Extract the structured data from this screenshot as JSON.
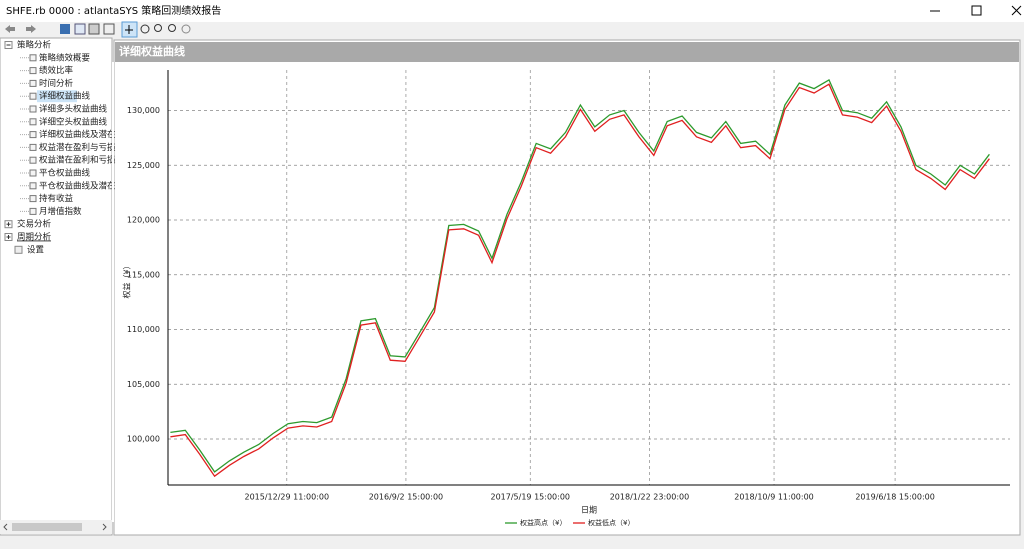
{
  "window": {
    "title": "SHFE.rb 0000 : atlantaSYS 策略回测绩效报告"
  },
  "tree": [
    {
      "label": "策略分析",
      "children": [
        "策略绩效概要",
        "绩效比率",
        "时间分析",
        "详细权益曲线",
        "详细多头权益曲线",
        "详细空头权益曲线",
        "详细权益曲线及潜在",
        "权益潜在盈利与亏损",
        "权益潜在盈利和亏损",
        "平仓权益曲线",
        "平仓权益曲线及潜在",
        "持有收益",
        "月增值指数"
      ]
    },
    {
      "label": "交易分析"
    },
    {
      "label": "周期分析"
    },
    {
      "label": "设置"
    }
  ],
  "panel": {
    "title": "详细权益曲线"
  },
  "chart_data": {
    "type": "line",
    "y_label": "权益（¥）",
    "x_label": "日期",
    "x": [
      "2015/5/1",
      "2015/6/1",
      "2015/7/1",
      "2015/8/1",
      "2015/9/1",
      "2015/10/1",
      "2015/11/1",
      "2015/12/1",
      "2016/1/1",
      "2016/2/1",
      "2016/3/1",
      "2016/4/1",
      "2016/5/1",
      "2016/6/1",
      "2016/7/1",
      "2016/8/1",
      "2016/9/1",
      "2016/10/1",
      "2016/11/1",
      "2016/12/1",
      "2017/1/1",
      "2017/2/1",
      "2017/3/1",
      "2017/4/1",
      "2017/5/1",
      "2017/6/1",
      "2017/7/1",
      "2017/8/1",
      "2017/9/1",
      "2017/10/1",
      "2017/11/1",
      "2017/12/1",
      "2018/1/1",
      "2018/2/1",
      "2018/3/1",
      "2018/4/1",
      "2018/5/1",
      "2018/6/1",
      "2018/7/1",
      "2018/8/1",
      "2018/9/1",
      "2018/10/1",
      "2018/11/1",
      "2018/12/1",
      "2019/1/1",
      "2019/2/1",
      "2019/3/1",
      "2019/4/1",
      "2019/5/1",
      "2019/6/1",
      "2019/7/1",
      "2019/8/1",
      "2019/9/1",
      "2019/10/1",
      "2019/11/1",
      "2019/12/1",
      "2020/1/1"
    ],
    "series": [
      {
        "name": "权益高点（¥）",
        "color": "#2e9a2e",
        "values": [
          100600,
          100800,
          99000,
          97000,
          98000,
          98800,
          99500,
          100500,
          101400,
          101600,
          101500,
          102000,
          105500,
          110800,
          111000,
          107600,
          107500,
          109700,
          112000,
          119500,
          119600,
          119000,
          116500,
          120500,
          123500,
          127000,
          126500,
          128000,
          130500,
          128500,
          129600,
          130000,
          128000,
          126300,
          129000,
          129500,
          128000,
          127500,
          129000,
          127000,
          127200,
          126000,
          130500,
          132500,
          132000,
          132800,
          130000,
          129800,
          129300,
          130800,
          128500,
          125000,
          124200,
          123200,
          125000,
          124200,
          126000
        ]
      },
      {
        "name": "权益低点（¥）",
        "color": "#e02020",
        "values": [
          100200,
          100400,
          98600,
          96600,
          97600,
          98400,
          99100,
          100100,
          101000,
          101200,
          101100,
          101600,
          105100,
          110400,
          110600,
          107200,
          107100,
          109300,
          111600,
          119100,
          119200,
          118600,
          116100,
          120100,
          123100,
          126600,
          126100,
          127600,
          130100,
          128100,
          129200,
          129600,
          127600,
          125900,
          128600,
          129100,
          127600,
          127100,
          128600,
          126600,
          126800,
          125600,
          130100,
          132100,
          131600,
          132400,
          129600,
          129400,
          128900,
          130400,
          128100,
          124600,
          123800,
          122800,
          124600,
          123800,
          125600
        ]
      }
    ],
    "xlim": [
      "2015/4/26",
      "2020/2/13"
    ],
    "xticks": [
      "2015/12/29 11:00:00",
      "2016/9/2 15:00:00",
      "2017/5/19 15:00:00",
      "2018/1/22 23:00:00",
      "2018/10/9 11:00:00",
      "2019/6/18 15:00:00"
    ],
    "ylim": [
      95800,
      133700
    ],
    "yticks": [
      {
        "value": 100000,
        "label": "100,000"
      },
      {
        "value": 105000,
        "label": "105,000"
      },
      {
        "value": 110000,
        "label": "110,000"
      },
      {
        "value": 115000,
        "label": "115,000"
      },
      {
        "value": 120000,
        "label": "120,000"
      },
      {
        "value": 125000,
        "label": "125,000"
      },
      {
        "value": 130000,
        "label": "130,000"
      }
    ],
    "grid": true,
    "legend": "bottom"
  }
}
